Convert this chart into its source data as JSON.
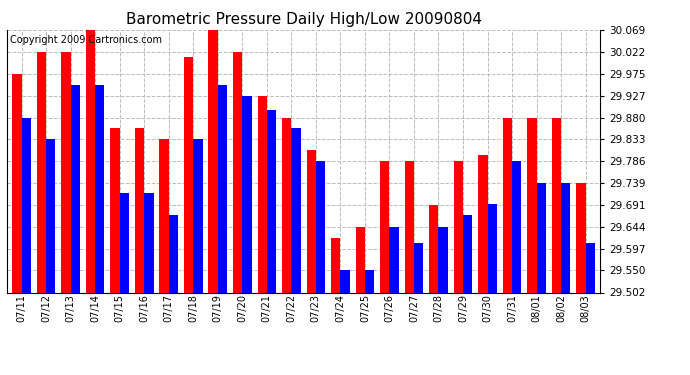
{
  "title": "Barometric Pressure Daily High/Low 20090804",
  "copyright": "Copyright 2009 Cartronics.com",
  "dates": [
    "07/11",
    "07/12",
    "07/13",
    "07/14",
    "07/15",
    "07/16",
    "07/17",
    "07/18",
    "07/19",
    "07/20",
    "07/21",
    "07/22",
    "07/23",
    "07/24",
    "07/25",
    "07/26",
    "07/27",
    "07/28",
    "07/29",
    "07/30",
    "07/31",
    "08/01",
    "08/02",
    "08/03"
  ],
  "highs": [
    29.975,
    30.022,
    30.022,
    30.069,
    29.857,
    29.857,
    29.833,
    30.011,
    30.069,
    30.022,
    29.927,
    29.88,
    29.81,
    29.62,
    29.644,
    29.786,
    29.786,
    29.691,
    29.786,
    29.8,
    29.88,
    29.88,
    29.88,
    29.739
  ],
  "lows": [
    29.88,
    29.833,
    29.951,
    29.951,
    29.716,
    29.716,
    29.669,
    29.833,
    29.951,
    29.927,
    29.897,
    29.857,
    29.786,
    29.55,
    29.55,
    29.644,
    29.609,
    29.644,
    29.669,
    29.693,
    29.786,
    29.739,
    29.739,
    29.609
  ],
  "high_color": "#FF0000",
  "low_color": "#0000FF",
  "bg_color": "#FFFFFF",
  "plot_bg_color": "#FFFFFF",
  "grid_color": "#BBBBBB",
  "yticks": [
    29.502,
    29.55,
    29.597,
    29.644,
    29.691,
    29.739,
    29.786,
    29.833,
    29.88,
    29.927,
    29.975,
    30.022,
    30.069
  ],
  "ymin": 29.502,
  "ymax": 30.069,
  "bar_width": 0.38,
  "title_fontsize": 11,
  "copyright_fontsize": 7
}
